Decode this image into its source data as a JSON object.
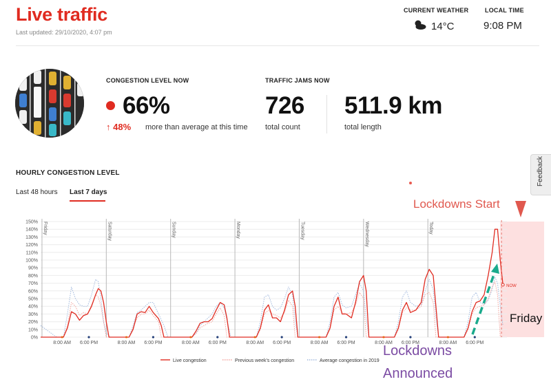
{
  "header": {
    "title": "Live traffic",
    "last_updated": "Last updated: 29/10/2020, 4:07 pm",
    "weather_label": "CURRENT WEATHER",
    "weather_value": "14°C",
    "weather_icon": "partly-cloudy-icon",
    "time_label": "LOCAL TIME",
    "time_value": "9:08 PM"
  },
  "stats": {
    "congestion_label": "CONGESTION LEVEL NOW",
    "congestion_value": "66%",
    "change_value": "↑ 48%",
    "change_text": "more than average at this time",
    "jams_label": "TRAFFIC JAMS NOW",
    "jam_count": "726",
    "jam_count_label": "total count",
    "jam_length": "511.9 km",
    "jam_length_label": "total length"
  },
  "section": {
    "title": "HOURLY CONGESTION LEVEL",
    "tabs": [
      "Last 48 hours",
      "Last 7 days"
    ],
    "active_tab": "Last 7 days"
  },
  "feedback_label": "Feedback",
  "annotations": {
    "lockdowns_start": "Lockdowns Start",
    "friday": "Friday",
    "lockdowns_line1": "Lockdowns",
    "lockdowns_line2": "Announced"
  },
  "colors": {
    "brand_red": "#e02b20",
    "previous_week": "#f2a19b",
    "avg_2019": "#9fb7dc",
    "lockdown_band": "#fde0e0",
    "announce_arrow": "#1aaa8c",
    "annotation_purple": "#7b4ba3",
    "annotation_red": "#e0584e"
  },
  "chart_data": {
    "type": "line",
    "ylim": [
      0,
      150
    ],
    "y_ticks": [
      "0%",
      "10%",
      "20%",
      "30%",
      "40%",
      "50%",
      "60%",
      "70%",
      "80%",
      "90%",
      "100%",
      "110%",
      "120%",
      "130%",
      "140%",
      "150%"
    ],
    "day_labels": [
      "Friday",
      "Saturday",
      "Sunday",
      "Monday",
      "Tuesday",
      "Wednesday",
      "Today"
    ],
    "x_tick_labels": [
      "8:00 AM",
      "6:00 PM",
      "8:00 AM",
      "6:00 PM",
      "8:00 AM",
      "6:00 PM",
      "8:00 AM",
      "6:00 PM",
      "8:00 AM",
      "6:00 PM",
      "8:00 AM",
      "6:00 PM",
      "8:00 AM",
      "6:00 PM"
    ],
    "now_label": "NOW",
    "series": [
      {
        "name": "Live congestion",
        "values": [
          [
            0,
            0
          ],
          [
            17,
            0
          ],
          [
            20,
            12
          ],
          [
            23,
            33
          ],
          [
            26,
            30
          ],
          [
            29,
            22
          ],
          [
            32,
            28
          ],
          [
            35,
            30
          ],
          [
            38,
            40
          ],
          [
            41,
            55
          ],
          [
            43,
            63
          ],
          [
            45,
            60
          ],
          [
            47,
            45
          ],
          [
            49,
            20
          ],
          [
            51,
            0
          ],
          [
            66,
            0
          ],
          [
            69,
            10
          ],
          [
            72,
            30
          ],
          [
            75,
            33
          ],
          [
            78,
            32
          ],
          [
            81,
            40
          ],
          [
            84,
            32
          ],
          [
            88,
            24
          ],
          [
            90,
            15
          ],
          [
            92,
            0
          ],
          [
            113,
            0
          ],
          [
            116,
            8
          ],
          [
            119,
            18
          ],
          [
            122,
            20
          ],
          [
            125,
            20
          ],
          [
            128,
            24
          ],
          [
            131,
            35
          ],
          [
            134,
            45
          ],
          [
            137,
            42
          ],
          [
            139,
            25
          ],
          [
            141,
            0
          ],
          [
            161,
            0
          ],
          [
            164,
            12
          ],
          [
            167,
            35
          ],
          [
            170,
            42
          ],
          [
            173,
            25
          ],
          [
            176,
            25
          ],
          [
            179,
            20
          ],
          [
            182,
            35
          ],
          [
            185,
            55
          ],
          [
            188,
            60
          ],
          [
            190,
            40
          ],
          [
            192,
            0
          ],
          [
            213,
            0
          ],
          [
            216,
            12
          ],
          [
            219,
            40
          ],
          [
            222,
            52
          ],
          [
            225,
            30
          ],
          [
            228,
            30
          ],
          [
            232,
            25
          ],
          [
            235,
            45
          ],
          [
            238,
            72
          ],
          [
            241,
            80
          ],
          [
            243,
            60
          ],
          [
            245,
            0
          ],
          [
            264,
            0
          ],
          [
            267,
            12
          ],
          [
            270,
            35
          ],
          [
            273,
            45
          ],
          [
            276,
            32
          ],
          [
            280,
            35
          ],
          [
            284,
            45
          ],
          [
            287,
            75
          ],
          [
            290,
            88
          ],
          [
            293,
            80
          ],
          [
            295,
            40
          ],
          [
            297,
            0
          ],
          [
            316,
            0
          ],
          [
            319,
            12
          ],
          [
            322,
            33
          ],
          [
            325,
            45
          ],
          [
            328,
            47
          ],
          [
            331,
            55
          ],
          [
            334,
            80
          ],
          [
            337,
            110
          ],
          [
            339,
            140
          ],
          [
            341,
            140
          ],
          [
            343,
            100
          ],
          [
            345,
            68
          ]
        ]
      },
      {
        "name": "Previous week's congestion",
        "values": [
          [
            0,
            0
          ],
          [
            17,
            0
          ],
          [
            20,
            15
          ],
          [
            23,
            45
          ],
          [
            26,
            40
          ],
          [
            29,
            28
          ],
          [
            32,
            32
          ],
          [
            35,
            30
          ],
          [
            38,
            42
          ],
          [
            41,
            55
          ],
          [
            43,
            52
          ],
          [
            45,
            40
          ],
          [
            47,
            20
          ],
          [
            49,
            0
          ],
          [
            66,
            0
          ],
          [
            69,
            12
          ],
          [
            72,
            25
          ],
          [
            75,
            30
          ],
          [
            78,
            30
          ],
          [
            81,
            35
          ],
          [
            84,
            28
          ],
          [
            88,
            20
          ],
          [
            90,
            0
          ],
          [
            113,
            0
          ],
          [
            116,
            5
          ],
          [
            119,
            12
          ],
          [
            122,
            15
          ],
          [
            125,
            18
          ],
          [
            128,
            20
          ],
          [
            131,
            30
          ],
          [
            134,
            38
          ],
          [
            137,
            28
          ],
          [
            139,
            0
          ],
          [
            161,
            0
          ],
          [
            164,
            10
          ],
          [
            167,
            30
          ],
          [
            170,
            35
          ],
          [
            173,
            30
          ],
          [
            176,
            28
          ],
          [
            179,
            25
          ],
          [
            182,
            32
          ],
          [
            185,
            48
          ],
          [
            188,
            40
          ],
          [
            190,
            0
          ],
          [
            213,
            0
          ],
          [
            216,
            10
          ],
          [
            219,
            35
          ],
          [
            222,
            40
          ],
          [
            225,
            32
          ],
          [
            228,
            30
          ],
          [
            232,
            32
          ],
          [
            235,
            42
          ],
          [
            238,
            58
          ],
          [
            241,
            50
          ],
          [
            243,
            0
          ],
          [
            264,
            0
          ],
          [
            267,
            10
          ],
          [
            270,
            32
          ],
          [
            273,
            38
          ],
          [
            276,
            35
          ],
          [
            280,
            35
          ],
          [
            284,
            40
          ],
          [
            287,
            55
          ],
          [
            290,
            58
          ],
          [
            293,
            45
          ],
          [
            295,
            0
          ],
          [
            316,
            0
          ],
          [
            319,
            10
          ],
          [
            322,
            30
          ],
          [
            325,
            38
          ],
          [
            328,
            40
          ],
          [
            331,
            42
          ],
          [
            334,
            50
          ],
          [
            337,
            65
          ],
          [
            339,
            72
          ],
          [
            341,
            55
          ],
          [
            343,
            0
          ]
        ]
      },
      {
        "name": "Average congestion in 2019",
        "values": [
          [
            0,
            15
          ],
          [
            12,
            0
          ],
          [
            17,
            0
          ],
          [
            20,
            30
          ],
          [
            23,
            65
          ],
          [
            26,
            50
          ],
          [
            29,
            42
          ],
          [
            32,
            40
          ],
          [
            35,
            40
          ],
          [
            38,
            55
          ],
          [
            41,
            75
          ],
          [
            43,
            72
          ],
          [
            45,
            50
          ],
          [
            47,
            20
          ],
          [
            49,
            5
          ],
          [
            52,
            0
          ],
          [
            66,
            0
          ],
          [
            69,
            15
          ],
          [
            72,
            32
          ],
          [
            75,
            35
          ],
          [
            78,
            40
          ],
          [
            81,
            45
          ],
          [
            84,
            45
          ],
          [
            88,
            30
          ],
          [
            92,
            15
          ],
          [
            95,
            0
          ],
          [
            113,
            0
          ],
          [
            116,
            5
          ],
          [
            119,
            15
          ],
          [
            122,
            20
          ],
          [
            125,
            25
          ],
          [
            128,
            30
          ],
          [
            131,
            40
          ],
          [
            134,
            45
          ],
          [
            137,
            38
          ],
          [
            140,
            15
          ],
          [
            142,
            0
          ],
          [
            161,
            0
          ],
          [
            164,
            20
          ],
          [
            167,
            52
          ],
          [
            170,
            55
          ],
          [
            173,
            40
          ],
          [
            176,
            35
          ],
          [
            179,
            38
          ],
          [
            182,
            50
          ],
          [
            185,
            65
          ],
          [
            188,
            55
          ],
          [
            190,
            20
          ],
          [
            192,
            0
          ],
          [
            213,
            0
          ],
          [
            216,
            20
          ],
          [
            219,
            52
          ],
          [
            222,
            58
          ],
          [
            225,
            42
          ],
          [
            228,
            38
          ],
          [
            232,
            40
          ],
          [
            235,
            55
          ],
          [
            238,
            70
          ],
          [
            241,
            60
          ],
          [
            243,
            25
          ],
          [
            245,
            0
          ],
          [
            264,
            0
          ],
          [
            267,
            20
          ],
          [
            270,
            52
          ],
          [
            273,
            60
          ],
          [
            276,
            45
          ],
          [
            280,
            40
          ],
          [
            284,
            42
          ],
          [
            287,
            60
          ],
          [
            290,
            75
          ],
          [
            293,
            62
          ],
          [
            295,
            25
          ],
          [
            297,
            0
          ],
          [
            316,
            0
          ],
          [
            319,
            20
          ],
          [
            322,
            52
          ],
          [
            325,
            58
          ],
          [
            328,
            45
          ],
          [
            331,
            42
          ],
          [
            334,
            48
          ],
          [
            337,
            62
          ],
          [
            339,
            78
          ],
          [
            341,
            70
          ],
          [
            343,
            40
          ],
          [
            345,
            15
          ]
        ]
      }
    ],
    "x_range_hours": [
      0,
      348
    ],
    "lockdown_start_hour": 345
  }
}
